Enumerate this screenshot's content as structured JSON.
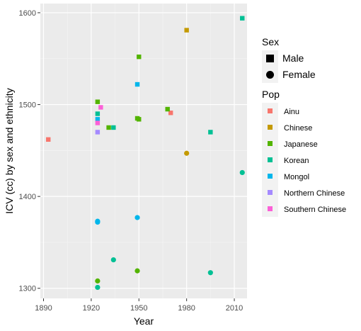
{
  "chart_data": {
    "type": "scatter",
    "xlabel": "Year",
    "ylabel": "ICV (cc) by sex and ethnicity",
    "xlim": [
      1888,
      2018
    ],
    "ylim": [
      1289,
      1610
    ],
    "x_ticks": [
      1890,
      1920,
      1950,
      1980,
      2010
    ],
    "y_ticks": [
      1300,
      1400,
      1500,
      1600
    ],
    "grid": true,
    "legend_position": "right",
    "shape_legend": {
      "title": "Sex",
      "items": [
        {
          "label": "Male",
          "shape": "square"
        },
        {
          "label": "Female",
          "shape": "circle"
        }
      ]
    },
    "color_legend": {
      "title": "Pop",
      "items": [
        {
          "label": "Ainu",
          "color": "#F8766D"
        },
        {
          "label": "Chinese",
          "color": "#C49A00"
        },
        {
          "label": "Japanese",
          "color": "#53B400"
        },
        {
          "label": "Korean",
          "color": "#00C094"
        },
        {
          "label": "Mongol",
          "color": "#00B6EB"
        },
        {
          "label": "Northern Chinese",
          "color": "#A58AFF"
        },
        {
          "label": "Southern Chinese",
          "color": "#FB61D7"
        }
      ]
    },
    "points": [
      {
        "pop": "Ainu",
        "sex": "Male",
        "x": 1893,
        "y": 1462
      },
      {
        "pop": "Ainu",
        "sex": "Male",
        "x": 1970,
        "y": 1491
      },
      {
        "pop": "Chinese",
        "sex": "Male",
        "x": 1980,
        "y": 1581
      },
      {
        "pop": "Chinese",
        "sex": "Female",
        "x": 1980,
        "y": 1447
      },
      {
        "pop": "Japanese",
        "sex": "Male",
        "x": 1924,
        "y": 1503
      },
      {
        "pop": "Japanese",
        "sex": "Male",
        "x": 1931,
        "y": 1475
      },
      {
        "pop": "Japanese",
        "sex": "Male",
        "x": 1949,
        "y": 1485
      },
      {
        "pop": "Japanese",
        "sex": "Male",
        "x": 1950,
        "y": 1484
      },
      {
        "pop": "Japanese",
        "sex": "Male",
        "x": 1950,
        "y": 1552
      },
      {
        "pop": "Japanese",
        "sex": "Male",
        "x": 1968,
        "y": 1495
      },
      {
        "pop": "Japanese",
        "sex": "Female",
        "x": 1924,
        "y": 1308
      },
      {
        "pop": "Japanese",
        "sex": "Female",
        "x": 1949,
        "y": 1319
      },
      {
        "pop": "Korean",
        "sex": "Male",
        "x": 1924,
        "y": 1490
      },
      {
        "pop": "Korean",
        "sex": "Male",
        "x": 1934,
        "y": 1475
      },
      {
        "pop": "Korean",
        "sex": "Male",
        "x": 1995,
        "y": 1470
      },
      {
        "pop": "Korean",
        "sex": "Male",
        "x": 2015,
        "y": 1594
      },
      {
        "pop": "Korean",
        "sex": "Female",
        "x": 1924,
        "y": 1301
      },
      {
        "pop": "Korean",
        "sex": "Female",
        "x": 1934,
        "y": 1331
      },
      {
        "pop": "Korean",
        "sex": "Female",
        "x": 1995,
        "y": 1317
      },
      {
        "pop": "Korean",
        "sex": "Female",
        "x": 2015,
        "y": 1426
      },
      {
        "pop": "Mongol",
        "sex": "Male",
        "x": 1924,
        "y": 1484
      },
      {
        "pop": "Mongol",
        "sex": "Male",
        "x": 1949,
        "y": 1522
      },
      {
        "pop": "Mongol",
        "sex": "Female",
        "x": 1924,
        "y": 1373
      },
      {
        "pop": "Mongol",
        "sex": "Female",
        "x": 1924,
        "y": 1372
      },
      {
        "pop": "Mongol",
        "sex": "Female",
        "x": 1949,
        "y": 1377
      },
      {
        "pop": "Northern Chinese",
        "sex": "Male",
        "x": 1924,
        "y": 1470
      },
      {
        "pop": "Southern Chinese",
        "sex": "Male",
        "x": 1926,
        "y": 1497
      },
      {
        "pop": "Southern Chinese",
        "sex": "Male",
        "x": 1924,
        "y": 1480
      }
    ]
  }
}
